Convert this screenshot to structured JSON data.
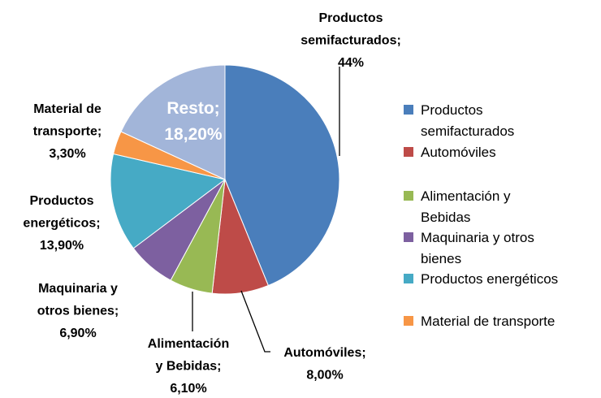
{
  "chart_data": {
    "type": "pie",
    "categories": [
      "Productos semifacturados",
      "Automóviles",
      "Alimentación y Bebidas",
      "Maquinaria y otros bienes",
      "Productos energéticos",
      "Material de transporte",
      "Resto"
    ],
    "values": [
      44,
      8.0,
      6.1,
      6.9,
      13.9,
      3.3,
      18.2
    ],
    "value_labels": [
      "Productos semifacturados; 44%",
      "Automóviles; 8,00%",
      "Alimentación y Bebidas; 6,10%",
      "Maquinaria y otros bienes; 6,90%",
      "Productos energéticos; 13,90%",
      "Material de transporte; 3,30%",
      "Resto; 18,20%"
    ],
    "colors": [
      "#4a7ebb",
      "#be4b48",
      "#98b954",
      "#7d60a0",
      "#46aac5",
      "#f79646",
      "#a2b5d9"
    ]
  }
}
